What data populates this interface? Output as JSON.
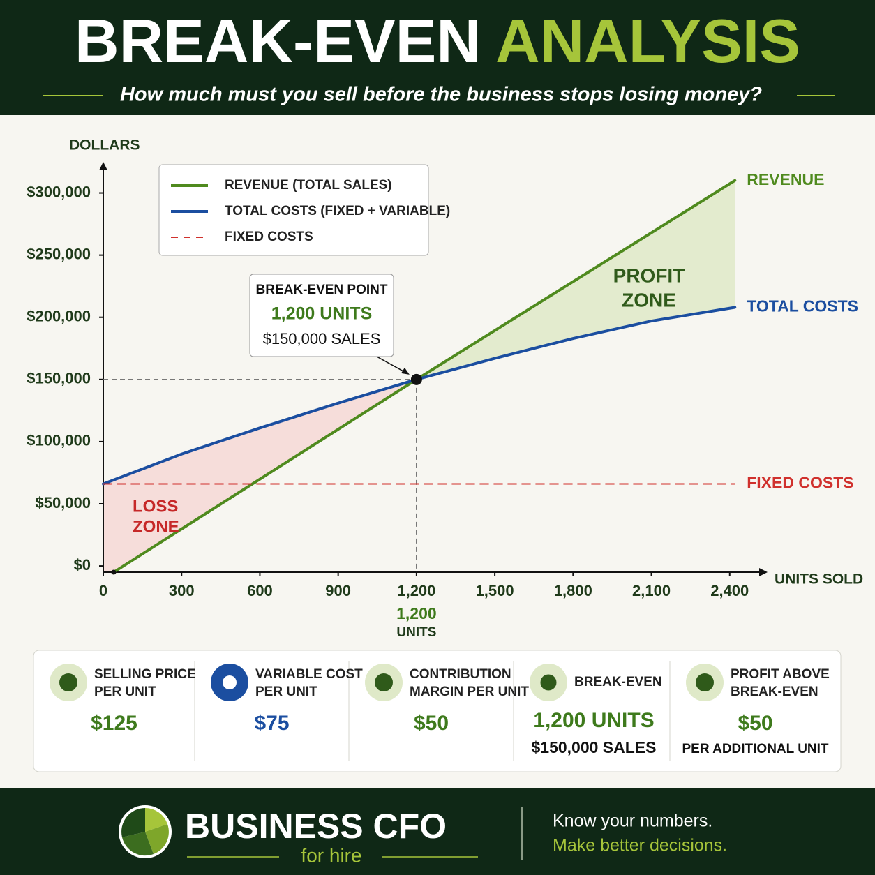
{
  "header": {
    "title": "BREAK-EVEN",
    "title_accent": "ANALYSIS",
    "subtitle": "How much must you sell before the business stops losing money?"
  },
  "chart_data": {
    "type": "line",
    "y_axis_label": "DOLLARS",
    "x_axis_label": "UNITS SOLD",
    "xlim": [
      0,
      2545
    ],
    "ylim": [
      -5000,
      325000
    ],
    "xticks": [
      0,
      300,
      600,
      900,
      {
        "value": 1200,
        "label": "1,200"
      },
      {
        "value": 1500,
        "label": "1,500"
      },
      {
        "value": 1800,
        "label": "1,800"
      },
      {
        "value": 2100,
        "label": "2,100"
      },
      {
        "value": 2400,
        "label": "2,400"
      }
    ],
    "yticks": [
      {
        "value": 0,
        "label": "$0"
      },
      {
        "value": 50000,
        "label": "$50,000"
      },
      {
        "value": 100000,
        "label": "$100,000"
      },
      {
        "value": 150000,
        "label": "$150,000"
      },
      {
        "value": 200000,
        "label": "$200,000"
      },
      {
        "value": 250000,
        "label": "$250,000"
      },
      {
        "value": 300000,
        "label": "$300,000"
      }
    ],
    "series": [
      {
        "name": "REVENUE (TOTAL SALES)",
        "end_label": "REVENUE",
        "color": "#4f8a1e",
        "dash": false,
        "x": [
          40,
          1200,
          2420
        ],
        "values": [
          -5000,
          150000,
          310000
        ]
      },
      {
        "name": "TOTAL COSTS (FIXED + VARIABLE)",
        "end_label": "TOTAL COSTS",
        "color": "#1b4ea0",
        "dash": false,
        "x": [
          0,
          300,
          600,
          900,
          1200,
          1500,
          1800,
          2100,
          2420
        ],
        "values": [
          66000,
          90000,
          111000,
          131000,
          150000,
          167000,
          183000,
          197000,
          208000
        ]
      },
      {
        "name": "FIXED COSTS",
        "end_label": "FIXED COSTS",
        "color": "#d0312d",
        "dash": true,
        "x": [
          0,
          2420
        ],
        "values": [
          66000,
          66000
        ]
      }
    ],
    "zones": {
      "profit": [
        "PROFIT",
        "ZONE"
      ],
      "loss": [
        "LOSS",
        "ZONE"
      ]
    },
    "break_even": {
      "x": 1200,
      "y": 150000,
      "title": "BREAK-EVEN POINT",
      "units": "1,200 UNITS",
      "sales": "$150,000 SALES",
      "axis_label": [
        "1,200",
        "UNITS"
      ]
    }
  },
  "metrics": [
    {
      "label_lines": [
        "SELLING PRICE",
        "PER UNIT"
      ],
      "value": "$125",
      "color": "#3e7a1c"
    },
    {
      "label_lines": [
        "VARIABLE COST",
        "PER UNIT"
      ],
      "value": "$75",
      "color": "#1b4ea0"
    },
    {
      "label_lines": [
        "CONTRIBUTION",
        "MARGIN PER UNIT"
      ],
      "value": "$50",
      "color": "#3e7a1c"
    },
    {
      "label_lines": [
        "BREAK-EVEN"
      ],
      "value": "1,200 UNITS",
      "sub": "$150,000 SALES",
      "color": "#3e7a1c"
    },
    {
      "label_lines": [
        "PROFIT ABOVE",
        "BREAK-EVEN"
      ],
      "value": "$50",
      "sub": "PER ADDITIONAL UNIT",
      "color": "#3e7a1c"
    }
  ],
  "footer": {
    "brand": "BUSINESS CFO",
    "brand_sub": "for hire",
    "tagline": [
      "Know your numbers.",
      "Make better decisions."
    ]
  }
}
